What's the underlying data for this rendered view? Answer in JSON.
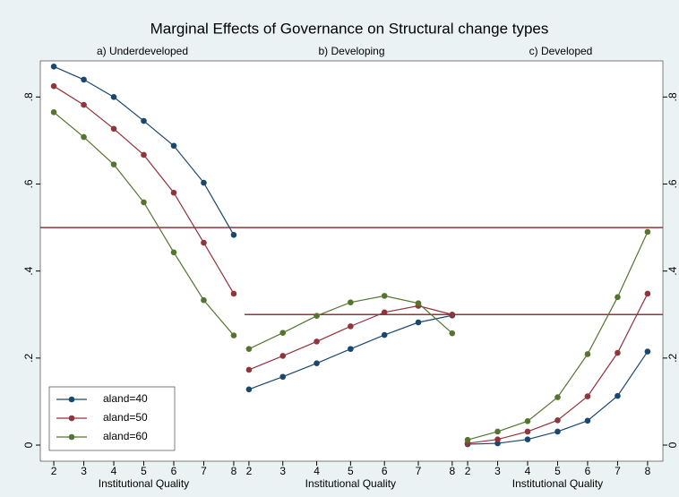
{
  "chart_data": [
    {
      "type": "line",
      "title": "Marginal Effects of Governance on Structural change types",
      "subtitle": "a) Underdeveloped",
      "xlabel": "Institutional Quality",
      "x": [
        2,
        3,
        4,
        5,
        6,
        7,
        8
      ],
      "xlim": [
        1.55,
        8.36
      ],
      "xticks": [
        2,
        3,
        4,
        5,
        6,
        7,
        8
      ],
      "ylim": [
        -0.037,
        0.883
      ],
      "yticks": [
        0,
        {
          "value": 0.2,
          "label": ".2"
        },
        {
          "value": 0.4,
          "label": ".4"
        },
        {
          "value": 0.6,
          "label": ".6"
        },
        {
          "value": 0.8,
          "label": ".8"
        }
      ],
      "hlines": [
        0.5
      ],
      "hline_color": "#90353b",
      "legend": "bottom-left",
      "series": [
        {
          "name": "aland=40",
          "color": "#1a476f",
          "values": [
            0.87,
            0.84,
            0.8,
            0.745,
            0.688,
            0.603,
            0.483
          ]
        },
        {
          "name": "aland=50",
          "color": "#90353b",
          "values": [
            0.825,
            0.782,
            0.727,
            0.667,
            0.58,
            0.465,
            0.348
          ]
        },
        {
          "name": "aland=60",
          "color": "#55752f",
          "values": [
            0.765,
            0.708,
            0.645,
            0.558,
            0.443,
            0.333,
            0.252
          ]
        }
      ]
    },
    {
      "type": "line",
      "subtitle": "b) Developing",
      "xlabel": "Institutional Quality",
      "x": [
        2,
        3,
        4,
        5,
        6,
        7,
        8
      ],
      "xlim": [
        1.87,
        8.19
      ],
      "xticks": [
        2,
        3,
        4,
        5,
        6,
        7,
        8
      ],
      "ylim": [
        -0.037,
        0.883
      ],
      "hlines": [
        0.5,
        0.3
      ],
      "hline_color": "#90353b",
      "series": [
        {
          "color": "#1a476f",
          "values": [
            0.128,
            0.157,
            0.188,
            0.221,
            0.253,
            0.282,
            0.298
          ]
        },
        {
          "color": "#90353b",
          "values": [
            0.173,
            0.205,
            0.238,
            0.273,
            0.305,
            0.32,
            0.3
          ]
        },
        {
          "color": "#55752f",
          "values": [
            0.221,
            0.258,
            0.297,
            0.328,
            0.343,
            0.326,
            0.257
          ]
        }
      ]
    },
    {
      "type": "line",
      "subtitle": "c) Developed",
      "xlabel": "Institutional Quality",
      "x": [
        2,
        3,
        4,
        5,
        6,
        7,
        8
      ],
      "xlim": [
        1.7,
        8.51
      ],
      "xticks": [
        2,
        3,
        4,
        5,
        6,
        7,
        8
      ],
      "ylim": [
        -0.037,
        0.883
      ],
      "yticks": [
        0,
        {
          "value": 0.2,
          "label": ".2"
        },
        {
          "value": 0.4,
          "label": ".4"
        },
        {
          "value": 0.6,
          "label": ".6"
        },
        {
          "value": 0.8,
          "label": ".8"
        }
      ],
      "hlines": [
        0.5,
        0.3
      ],
      "hline_color": "#90353b",
      "series": [
        {
          "color": "#1a476f",
          "values": [
            0.002,
            0.004,
            0.013,
            0.031,
            0.056,
            0.113,
            0.215
          ]
        },
        {
          "color": "#90353b",
          "values": [
            0.004,
            0.013,
            0.031,
            0.057,
            0.112,
            0.212,
            0.348
          ]
        },
        {
          "color": "#55752f",
          "values": [
            0.012,
            0.031,
            0.055,
            0.11,
            0.209,
            0.34,
            0.49
          ]
        }
      ]
    }
  ]
}
